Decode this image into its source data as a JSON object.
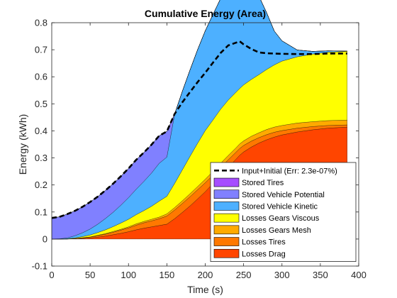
{
  "chart_data": {
    "type": "area",
    "title": "Cumulative Energy (Area)",
    "xlabel": "Time (s)",
    "ylabel": "Energy (kWh)",
    "xlim": [
      0,
      400
    ],
    "ylim": [
      -0.1,
      0.8
    ],
    "xticks": [
      0,
      50,
      100,
      150,
      200,
      250,
      300,
      350,
      400
    ],
    "yticks": [
      -0.1,
      0,
      0.1,
      0.2,
      0.3,
      0.4,
      0.5,
      0.6,
      0.7,
      0.8
    ],
    "grid": false,
    "legend_position": "bottom-right",
    "x": [
      0,
      10,
      20,
      30,
      40,
      50,
      60,
      70,
      80,
      90,
      100,
      110,
      120,
      130,
      140,
      150,
      160,
      170,
      180,
      190,
      200,
      210,
      220,
      230,
      240,
      245,
      250,
      260,
      270,
      280,
      290,
      300,
      320,
      340,
      360,
      385
    ],
    "stack_order": "bottom-to-top",
    "series": [
      {
        "name": "Losses Drag",
        "color": "#FF4500",
        "values": [
          0,
          0,
          0,
          0.001,
          0.002,
          0.004,
          0.007,
          0.011,
          0.016,
          0.021,
          0.027,
          0.034,
          0.04,
          0.045,
          0.05,
          0.055,
          0.075,
          0.098,
          0.122,
          0.148,
          0.175,
          0.205,
          0.235,
          0.265,
          0.295,
          0.31,
          0.322,
          0.34,
          0.355,
          0.367,
          0.377,
          0.385,
          0.396,
          0.404,
          0.41,
          0.414
        ]
      },
      {
        "name": "Losses Tires",
        "color": "#FF7800",
        "values": [
          0,
          0,
          0,
          0.001,
          0.002,
          0.003,
          0.005,
          0.007,
          0.009,
          0.012,
          0.014,
          0.017,
          0.02,
          0.022,
          0.025,
          0.03,
          0.032,
          0.033,
          0.034,
          0.034,
          0.033,
          0.031,
          0.03,
          0.028,
          0.026,
          0.025,
          0.024,
          0.022,
          0.02,
          0.019,
          0.018,
          0.016,
          0.014,
          0.012,
          0.01,
          0.008
        ]
      },
      {
        "name": "Losses Gears Mesh",
        "color": "#FFAA00",
        "values": [
          0,
          0,
          0,
          0,
          0.001,
          0.001,
          0.002,
          0.002,
          0.003,
          0.003,
          0.004,
          0.005,
          0.005,
          0.006,
          0.006,
          0.008,
          0.009,
          0.01,
          0.011,
          0.012,
          0.013,
          0.014,
          0.015,
          0.016,
          0.016,
          0.017,
          0.017,
          0.018,
          0.018,
          0.019,
          0.019,
          0.019,
          0.019,
          0.018,
          0.018,
          0.018
        ]
      },
      {
        "name": "Losses Gears Viscous",
        "color": "#FFFF00",
        "values": [
          0,
          0,
          0.001,
          0.002,
          0.004,
          0.007,
          0.01,
          0.014,
          0.018,
          0.023,
          0.028,
          0.034,
          0.04,
          0.048,
          0.059,
          0.065,
          0.089,
          0.114,
          0.138,
          0.16,
          0.18,
          0.19,
          0.2,
          0.205,
          0.206,
          0.205,
          0.207,
          0.21,
          0.215,
          0.222,
          0.23,
          0.238,
          0.245,
          0.25,
          0.253,
          0.254
        ]
      },
      {
        "name": "Stored Vehicle Kinetic",
        "color": "#4DB0FF",
        "values": [
          0,
          0.001,
          0.003,
          0.008,
          0.014,
          0.022,
          0.031,
          0.042,
          0.053,
          0.066,
          0.08,
          0.094,
          0.108,
          0.123,
          0.14,
          0.145,
          0.255,
          0.29,
          0.319,
          0.346,
          0.369,
          0.39,
          0.409,
          0.425,
          0.44,
          0.442,
          0.42,
          0.366,
          0.29,
          0.21,
          0.125,
          0.075,
          0.025,
          0.01,
          0.005,
          0.001
        ]
      },
      {
        "name": "Stored Vehicle Potential",
        "color": "#8080FF",
        "values": [
          0.078,
          0.081,
          0.088,
          0.092,
          0.096,
          0.1,
          0.102,
          0.104,
          0.106,
          0.107,
          0.108,
          0.109,
          0.107,
          0.105,
          0.102,
          0.095,
          0.002,
          0,
          0,
          0,
          0,
          0,
          0,
          0,
          0,
          0,
          0,
          0,
          0,
          0,
          0,
          0,
          0,
          0,
          0,
          0
        ]
      },
      {
        "name": "Stored Tires",
        "color": "#A64DFF",
        "values": [
          0,
          0,
          0,
          0,
          0,
          0,
          0,
          0,
          0,
          0,
          0,
          0,
          0,
          0,
          0,
          0,
          0,
          0,
          0,
          0,
          0,
          0,
          0,
          0,
          0,
          0,
          0,
          0,
          0,
          0,
          0,
          0,
          0,
          0,
          0,
          0
        ]
      }
    ],
    "line": {
      "name": "Input+Initial (Err: 2.3e-07%)",
      "style": "dashed",
      "color": "#000000",
      "values": [
        0.078,
        0.082,
        0.092,
        0.104,
        0.119,
        0.137,
        0.157,
        0.18,
        0.205,
        0.232,
        0.261,
        0.293,
        0.32,
        0.349,
        0.382,
        0.398,
        0.462,
        0.505,
        0.543,
        0.58,
        0.615,
        0.652,
        0.688,
        0.716,
        0.726,
        0.731,
        0.72,
        0.703,
        0.69,
        0.687,
        0.686,
        0.685,
        0.684,
        0.684,
        0.686,
        0.686
      ]
    }
  }
}
